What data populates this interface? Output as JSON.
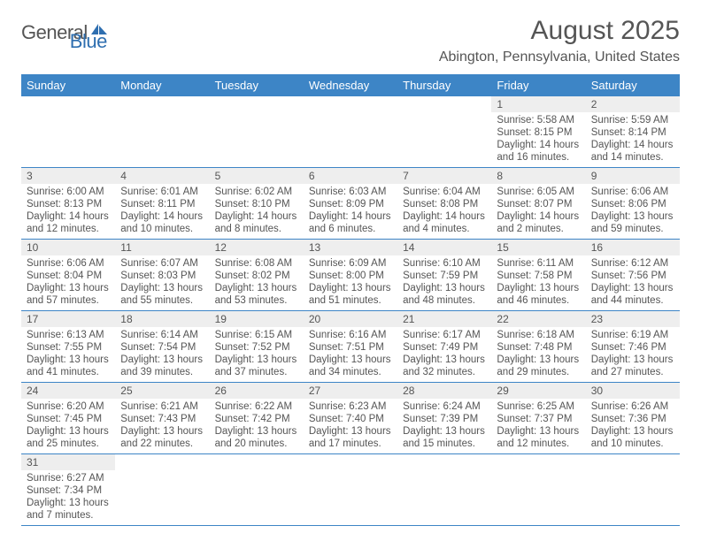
{
  "logo": {
    "general": "General",
    "blue": "Blue"
  },
  "title": "August 2025",
  "location": "Abington, Pennsylvania, United States",
  "colors": {
    "header_bg": "#3d85c6",
    "row_border": "#3d85c6",
    "daynum_bg": "#eeeeee",
    "text": "#555555"
  },
  "dayNames": [
    "Sunday",
    "Monday",
    "Tuesday",
    "Wednesday",
    "Thursday",
    "Friday",
    "Saturday"
  ],
  "weeks": [
    [
      null,
      null,
      null,
      null,
      null,
      {
        "n": "1",
        "sr": "5:58 AM",
        "ss": "8:15 PM",
        "dl": "14 hours and 16 minutes."
      },
      {
        "n": "2",
        "sr": "5:59 AM",
        "ss": "8:14 PM",
        "dl": "14 hours and 14 minutes."
      }
    ],
    [
      {
        "n": "3",
        "sr": "6:00 AM",
        "ss": "8:13 PM",
        "dl": "14 hours and 12 minutes."
      },
      {
        "n": "4",
        "sr": "6:01 AM",
        "ss": "8:11 PM",
        "dl": "14 hours and 10 minutes."
      },
      {
        "n": "5",
        "sr": "6:02 AM",
        "ss": "8:10 PM",
        "dl": "14 hours and 8 minutes."
      },
      {
        "n": "6",
        "sr": "6:03 AM",
        "ss": "8:09 PM",
        "dl": "14 hours and 6 minutes."
      },
      {
        "n": "7",
        "sr": "6:04 AM",
        "ss": "8:08 PM",
        "dl": "14 hours and 4 minutes."
      },
      {
        "n": "8",
        "sr": "6:05 AM",
        "ss": "8:07 PM",
        "dl": "14 hours and 2 minutes."
      },
      {
        "n": "9",
        "sr": "6:06 AM",
        "ss": "8:06 PM",
        "dl": "13 hours and 59 minutes."
      }
    ],
    [
      {
        "n": "10",
        "sr": "6:06 AM",
        "ss": "8:04 PM",
        "dl": "13 hours and 57 minutes."
      },
      {
        "n": "11",
        "sr": "6:07 AM",
        "ss": "8:03 PM",
        "dl": "13 hours and 55 minutes."
      },
      {
        "n": "12",
        "sr": "6:08 AM",
        "ss": "8:02 PM",
        "dl": "13 hours and 53 minutes."
      },
      {
        "n": "13",
        "sr": "6:09 AM",
        "ss": "8:00 PM",
        "dl": "13 hours and 51 minutes."
      },
      {
        "n": "14",
        "sr": "6:10 AM",
        "ss": "7:59 PM",
        "dl": "13 hours and 48 minutes."
      },
      {
        "n": "15",
        "sr": "6:11 AM",
        "ss": "7:58 PM",
        "dl": "13 hours and 46 minutes."
      },
      {
        "n": "16",
        "sr": "6:12 AM",
        "ss": "7:56 PM",
        "dl": "13 hours and 44 minutes."
      }
    ],
    [
      {
        "n": "17",
        "sr": "6:13 AM",
        "ss": "7:55 PM",
        "dl": "13 hours and 41 minutes."
      },
      {
        "n": "18",
        "sr": "6:14 AM",
        "ss": "7:54 PM",
        "dl": "13 hours and 39 minutes."
      },
      {
        "n": "19",
        "sr": "6:15 AM",
        "ss": "7:52 PM",
        "dl": "13 hours and 37 minutes."
      },
      {
        "n": "20",
        "sr": "6:16 AM",
        "ss": "7:51 PM",
        "dl": "13 hours and 34 minutes."
      },
      {
        "n": "21",
        "sr": "6:17 AM",
        "ss": "7:49 PM",
        "dl": "13 hours and 32 minutes."
      },
      {
        "n": "22",
        "sr": "6:18 AM",
        "ss": "7:48 PM",
        "dl": "13 hours and 29 minutes."
      },
      {
        "n": "23",
        "sr": "6:19 AM",
        "ss": "7:46 PM",
        "dl": "13 hours and 27 minutes."
      }
    ],
    [
      {
        "n": "24",
        "sr": "6:20 AM",
        "ss": "7:45 PM",
        "dl": "13 hours and 25 minutes."
      },
      {
        "n": "25",
        "sr": "6:21 AM",
        "ss": "7:43 PM",
        "dl": "13 hours and 22 minutes."
      },
      {
        "n": "26",
        "sr": "6:22 AM",
        "ss": "7:42 PM",
        "dl": "13 hours and 20 minutes."
      },
      {
        "n": "27",
        "sr": "6:23 AM",
        "ss": "7:40 PM",
        "dl": "13 hours and 17 minutes."
      },
      {
        "n": "28",
        "sr": "6:24 AM",
        "ss": "7:39 PM",
        "dl": "13 hours and 15 minutes."
      },
      {
        "n": "29",
        "sr": "6:25 AM",
        "ss": "7:37 PM",
        "dl": "13 hours and 12 minutes."
      },
      {
        "n": "30",
        "sr": "6:26 AM",
        "ss": "7:36 PM",
        "dl": "13 hours and 10 minutes."
      }
    ],
    [
      {
        "n": "31",
        "sr": "6:27 AM",
        "ss": "7:34 PM",
        "dl": "13 hours and 7 minutes."
      },
      null,
      null,
      null,
      null,
      null,
      null
    ]
  ],
  "labels": {
    "sunrise": "Sunrise:",
    "sunset": "Sunset:",
    "daylight": "Daylight:"
  }
}
